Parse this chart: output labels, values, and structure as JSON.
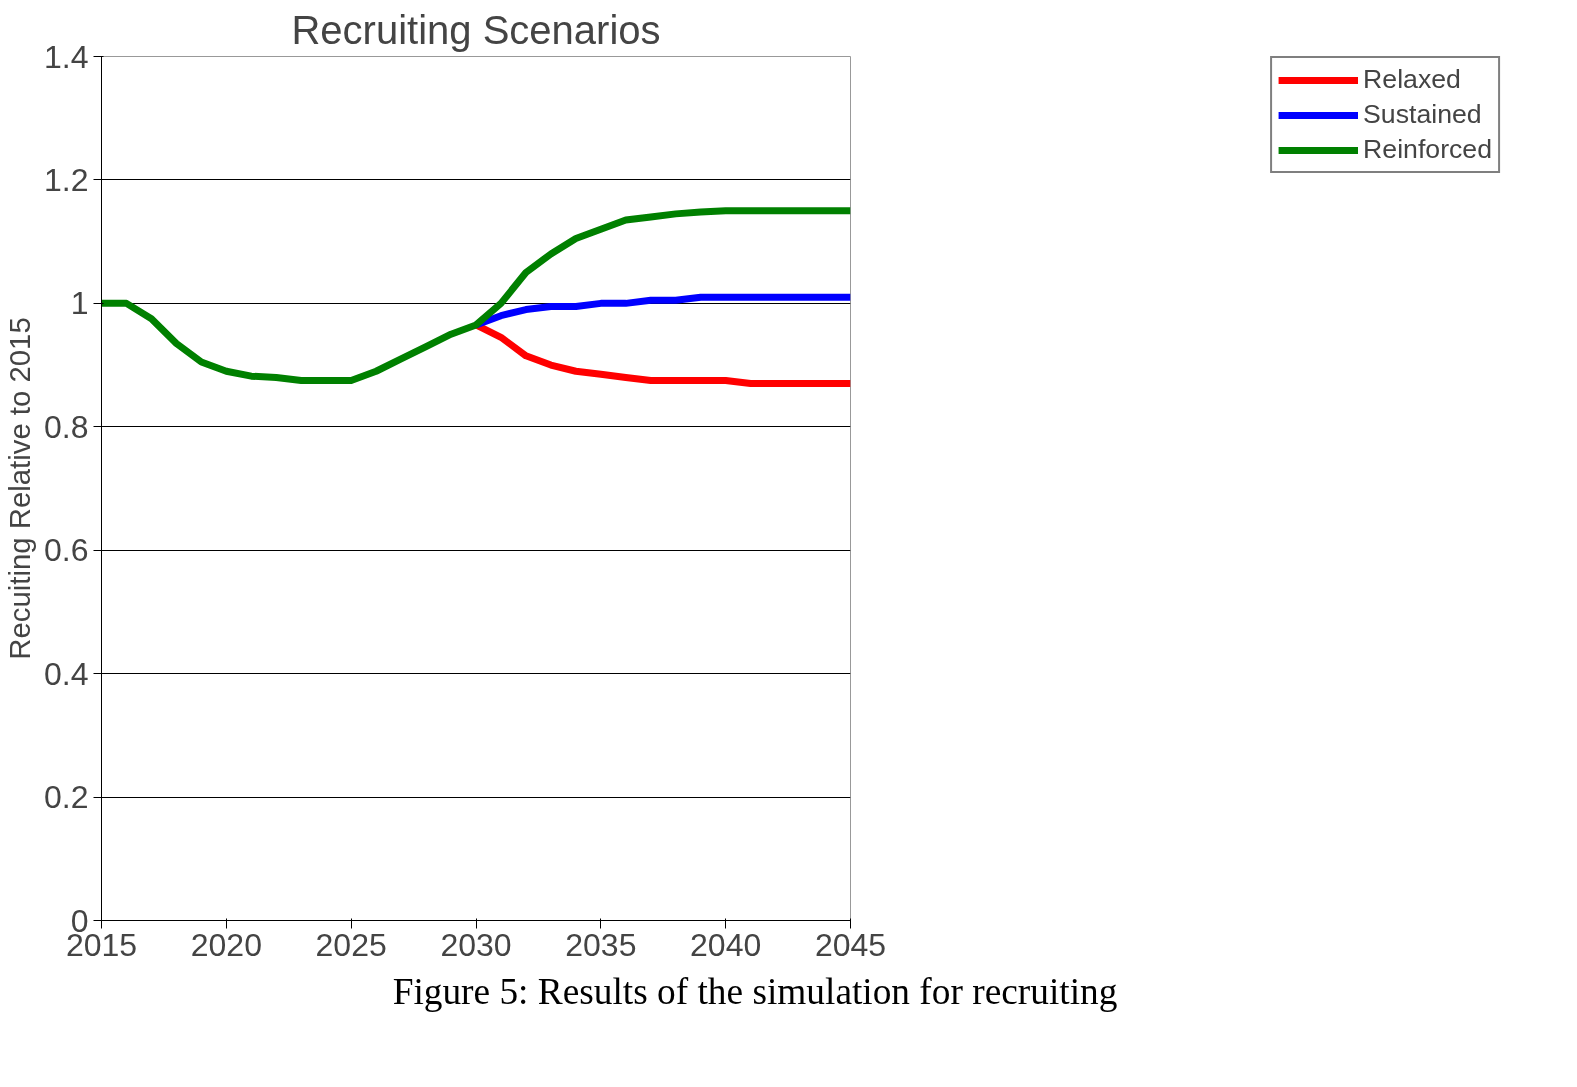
{
  "chart_data": {
    "type": "line",
    "title": "Recruiting Scenarios",
    "ylabel": "Recuiting Relative to 2015",
    "x": [
      2015,
      2016,
      2017,
      2018,
      2019,
      2020,
      2021,
      2022,
      2023,
      2024,
      2025,
      2026,
      2027,
      2028,
      2029,
      2030,
      2031,
      2032,
      2033,
      2034,
      2035,
      2036,
      2037,
      2038,
      2039,
      2040,
      2041,
      2042,
      2043,
      2044,
      2045
    ],
    "series": [
      {
        "name": "Relaxed",
        "color": "#ff0000",
        "values": [
          null,
          null,
          null,
          null,
          null,
          null,
          null,
          null,
          null,
          null,
          null,
          null,
          null,
          null,
          null,
          0.965,
          0.945,
          0.915,
          0.9,
          0.89,
          0.885,
          0.88,
          0.875,
          0.875,
          0.875,
          0.875,
          0.87,
          0.87,
          0.87,
          0.87,
          0.87
        ]
      },
      {
        "name": "Sustained",
        "color": "#0000ff",
        "values": [
          null,
          null,
          null,
          null,
          null,
          null,
          null,
          null,
          null,
          null,
          null,
          null,
          null,
          null,
          null,
          0.965,
          0.98,
          0.99,
          0.995,
          0.995,
          1.0,
          1.0,
          1.005,
          1.005,
          1.01,
          1.01,
          1.01,
          1.01,
          1.01,
          1.01,
          1.01
        ]
      },
      {
        "name": "Reinforced",
        "color": "#008000",
        "values": [
          1.0,
          1.0,
          0.975,
          0.935,
          0.905,
          0.89,
          0.882,
          0.88,
          0.875,
          0.875,
          0.875,
          0.89,
          0.91,
          0.93,
          0.95,
          0.965,
          1.0,
          1.05,
          1.08,
          1.105,
          1.12,
          1.135,
          1.14,
          1.145,
          1.148,
          1.15,
          1.15,
          1.15,
          1.15,
          1.15,
          1.15
        ]
      }
    ],
    "xlim": [
      2015,
      2045
    ],
    "xticks": [
      2015,
      2020,
      2025,
      2030,
      2035,
      2040,
      2045
    ],
    "ylim": [
      0,
      1.4
    ],
    "yticks": [
      0,
      0.2,
      0.4,
      0.6,
      0.8,
      1,
      1.2,
      1.4
    ],
    "grid": "y",
    "legend": "right",
    "line_style": "solid",
    "annotations": [
      "Figure 5: Results of the simulation for recruiting"
    ]
  }
}
